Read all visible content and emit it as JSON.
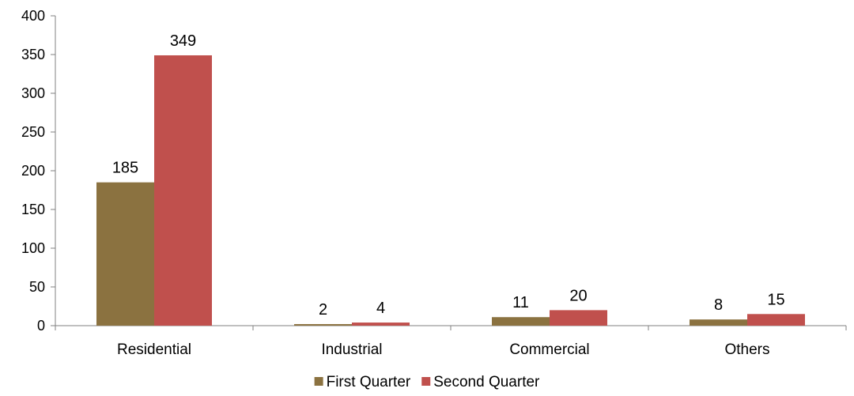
{
  "chart_data": {
    "type": "bar",
    "title": "",
    "xlabel": "",
    "ylabel": "",
    "categories": [
      "Residential",
      "Industrial",
      "Commercial",
      "Others"
    ],
    "series": [
      {
        "name": "First Quarter",
        "color": "#8B7240",
        "values": [
          185,
          2,
          11,
          8
        ]
      },
      {
        "name": "Second Quarter",
        "color": "#C0504D",
        "values": [
          349,
          4,
          20,
          15
        ]
      }
    ],
    "ylim": [
      0,
      400
    ],
    "yticks": [
      0,
      50,
      100,
      150,
      200,
      250,
      300,
      350,
      400
    ],
    "grid": false,
    "data_labels": true,
    "legend_position": "bottom"
  }
}
